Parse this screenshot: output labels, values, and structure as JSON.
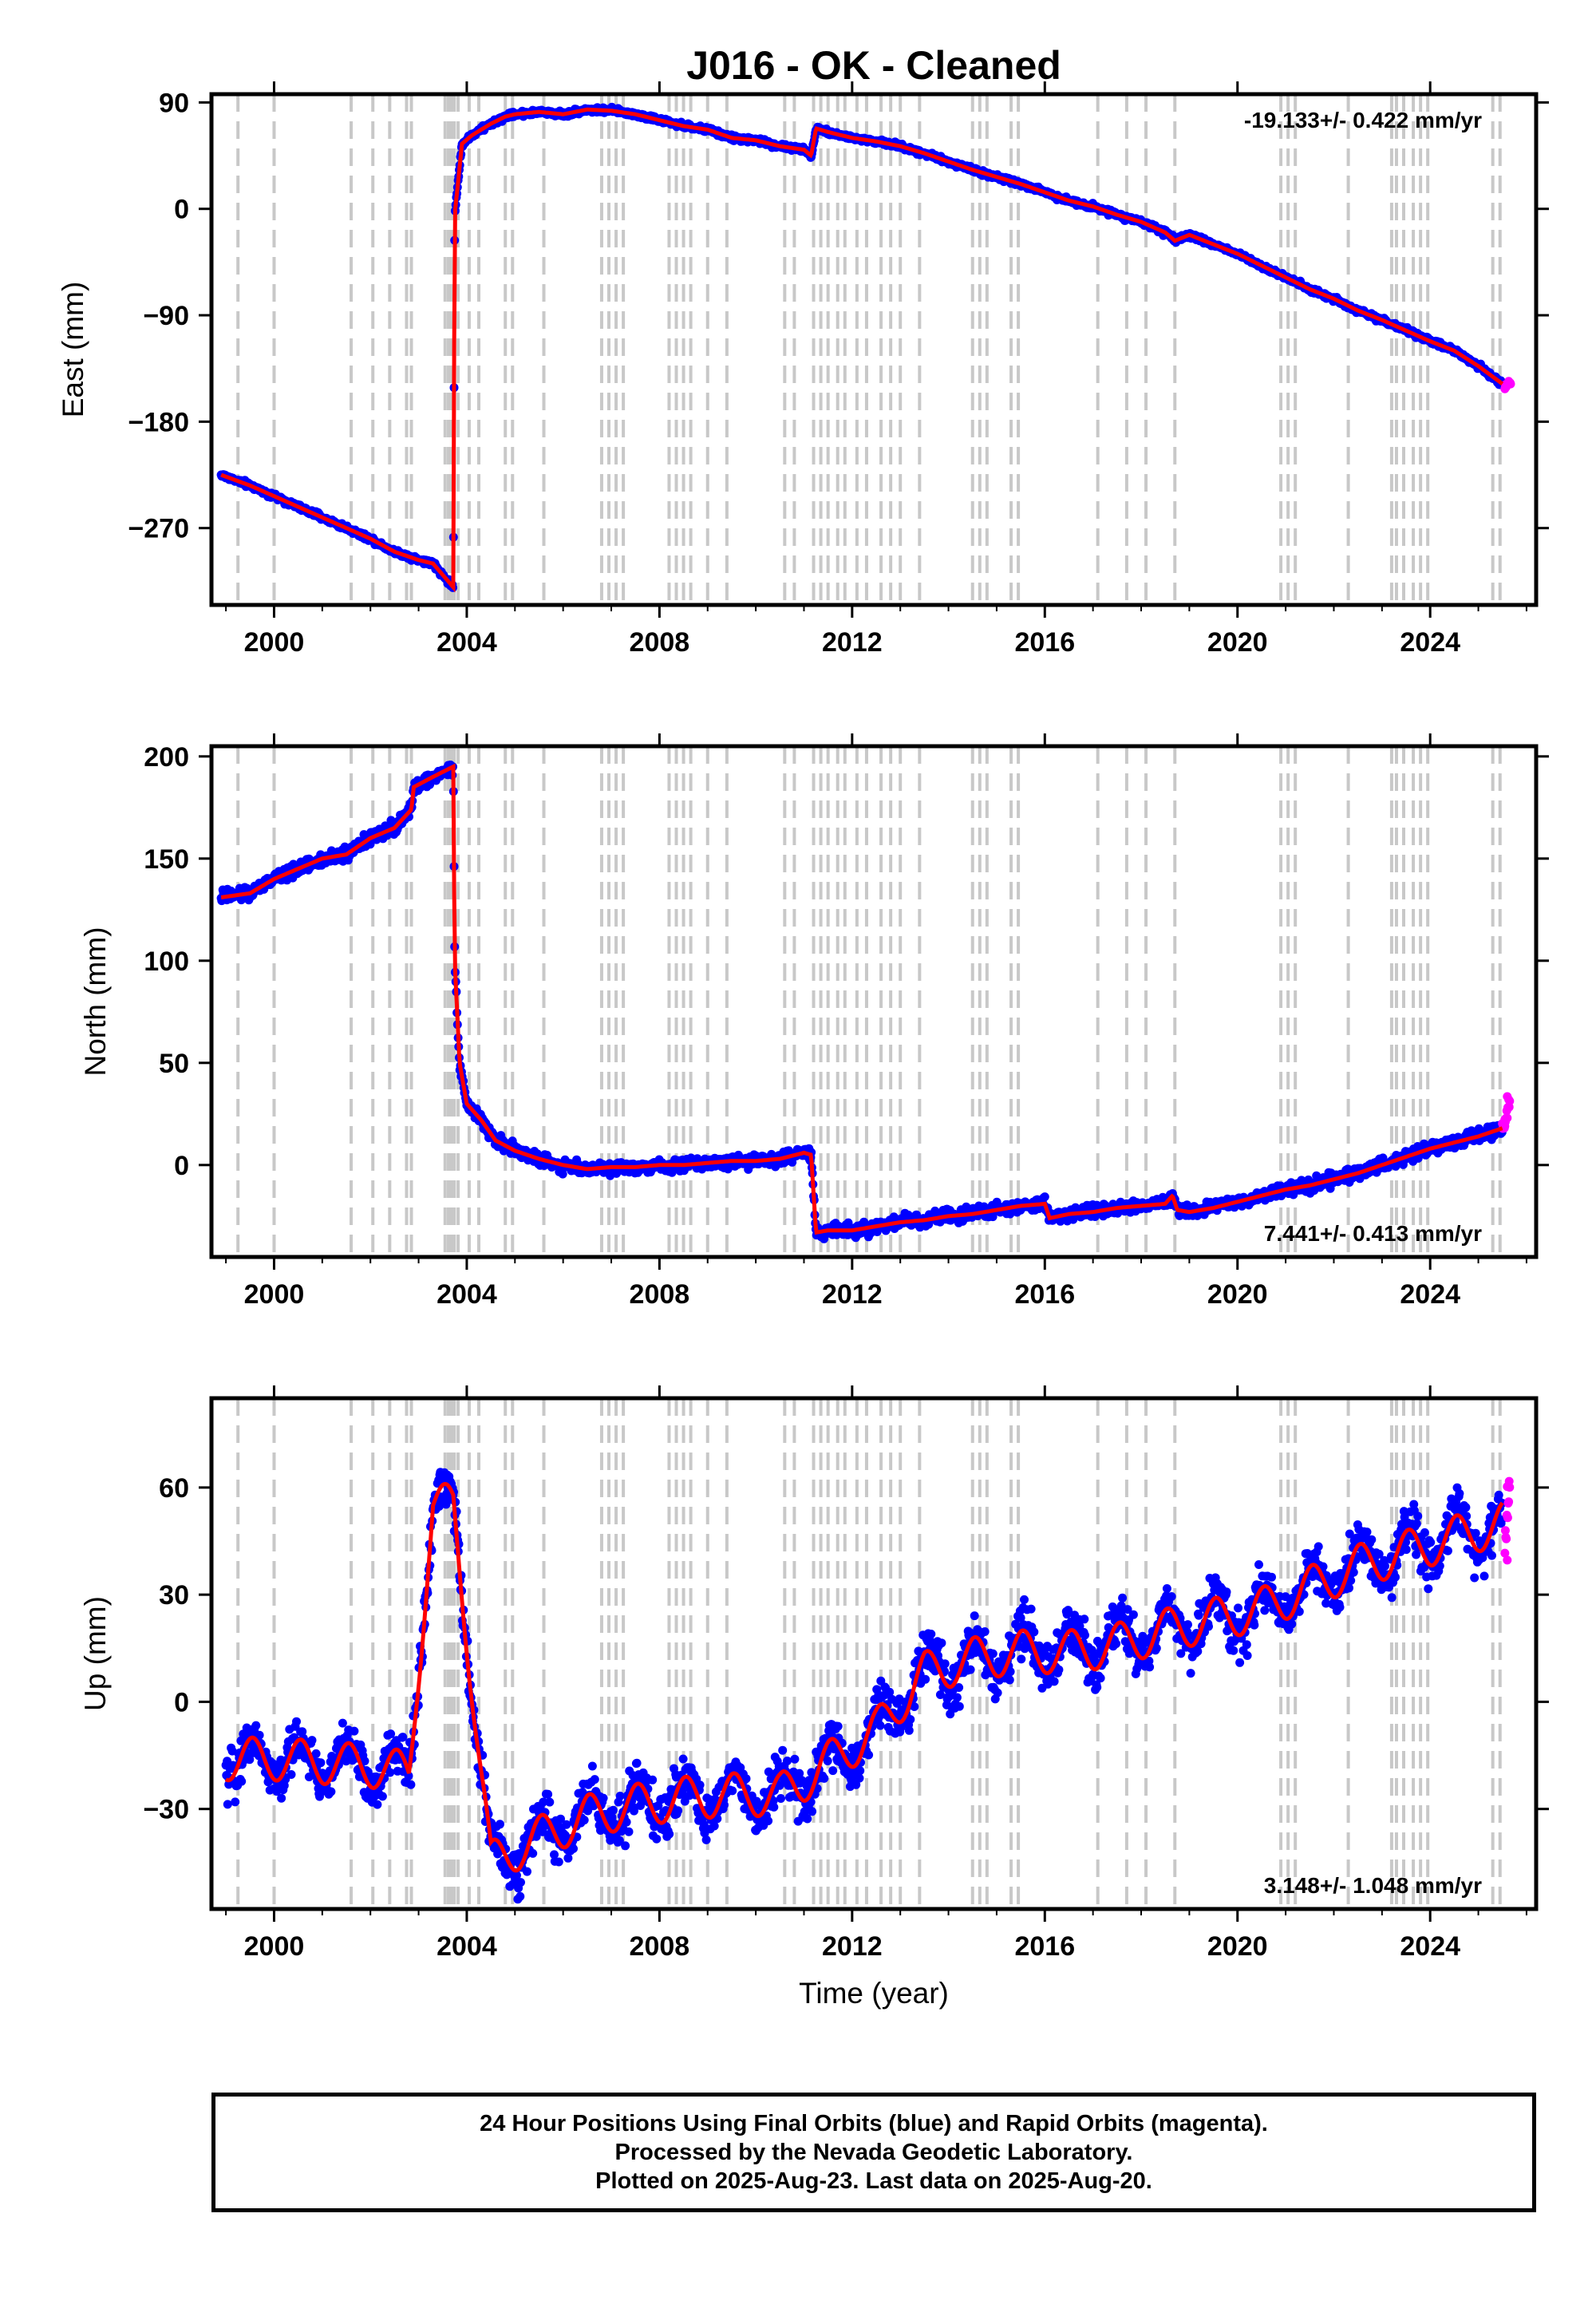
{
  "title": "J016  - OK - Cleaned",
  "x_axis_label": "Time (year)",
  "footer": {
    "line1": "24 Hour Positions Using Final Orbits (blue) and Rapid Orbits (magenta).",
    "line2": "Processed by the Nevada Geodetic Laboratory.",
    "line3": "Plotted on 2025-Aug-23. Last data on 2025-Aug-20."
  },
  "colors": {
    "final_orbits": "#0000ff",
    "rapid_orbits": "#ff00ff",
    "model": "#ff0000",
    "equipment_change_lines": "#c8c8c8"
  },
  "chart_data": [
    {
      "type": "scatter",
      "ylabel": "East (mm)",
      "xlim": [
        1998.7,
        2026.2
      ],
      "ylim": [
        -335,
        97
      ],
      "xticks": [
        2000,
        2004,
        2008,
        2012,
        2016,
        2020,
        2024
      ],
      "yticks": [
        -270,
        -180,
        -90,
        0,
        90
      ],
      "rate_text": "-19.133+/- 0.422 mm/yr",
      "rate_position": "top-right",
      "series": [
        {
          "x": [
            1998.9,
            1999.5,
            2000.0,
            2000.5,
            2001.0,
            2001.5,
            2002.0,
            2002.5,
            2003.0,
            2003.3,
            2003.72,
            2003.75,
            2003.9,
            2004.1,
            2004.5,
            2004.8,
            2005.0,
            2005.5,
            2006.0,
            2006.5,
            2007.0,
            2007.5,
            2008.0,
            2008.5,
            2009.0,
            2009.5,
            2010.0,
            2010.5,
            2011.0,
            2011.15,
            2011.25,
            2011.5,
            2012.0,
            2012.5,
            2013.0,
            2013.5,
            2014.0,
            2014.5,
            2015.0,
            2015.5,
            2016.0,
            2016.5,
            2017.0,
            2017.5,
            2018.0,
            2018.5,
            2018.7,
            2019.0,
            2019.5,
            2020.0,
            2020.5,
            2021.0,
            2021.5,
            2022.0,
            2022.5,
            2023.0,
            2023.5,
            2024.0,
            2024.5,
            2025.0,
            2025.5
          ],
          "y": [
            -225,
            -234,
            -243,
            -252,
            -261,
            -270,
            -279,
            -290,
            -297,
            -300,
            -320,
            -5,
            55,
            62,
            72,
            78,
            80,
            82,
            80,
            84,
            83,
            80,
            75,
            70,
            67,
            60,
            58,
            53,
            50,
            45,
            68,
            65,
            60,
            57,
            53,
            47,
            40,
            33,
            27,
            21,
            14,
            7,
            2,
            -5,
            -11,
            -20,
            -27,
            -22,
            -30,
            -38,
            -48,
            -58,
            -68,
            -76,
            -86,
            -94,
            -103,
            -112,
            -120,
            -133,
            -148
          ]
        },
        {
          "name": "Rapid",
          "x": [
            2025.55,
            2025.62
          ],
          "y": [
            -150,
            -148
          ]
        }
      ]
    },
    {
      "type": "scatter",
      "ylabel": "North (mm)",
      "xlim": [
        1998.7,
        2026.2
      ],
      "ylim": [
        -45,
        205
      ],
      "xticks": [
        2000,
        2004,
        2008,
        2012,
        2016,
        2020,
        2024
      ],
      "yticks": [
        0,
        50,
        100,
        150,
        200
      ],
      "rate_text": "7.441+/- 0.413 mm/yr",
      "rate_position": "bottom-right",
      "series": [
        {
          "x": [
            1998.9,
            1999.5,
            2000.0,
            2000.5,
            2001.0,
            2001.5,
            2002.0,
            2002.5,
            2002.85,
            2002.9,
            2003.3,
            2003.72,
            2003.75,
            2003.85,
            2004.0,
            2004.3,
            2004.6,
            2005.0,
            2005.5,
            2006.0,
            2006.5,
            2007.0,
            2007.5,
            2008.0,
            2008.5,
            2009.0,
            2009.5,
            2010.0,
            2010.5,
            2011.0,
            2011.15,
            2011.25,
            2011.5,
            2012.0,
            2012.5,
            2013.0,
            2013.5,
            2014.0,
            2014.5,
            2015.0,
            2015.5,
            2016.0,
            2016.1,
            2016.5,
            2017.0,
            2017.5,
            2018.0,
            2018.5,
            2018.65,
            2018.75,
            2019.0,
            2019.5,
            2020.0,
            2020.5,
            2021.0,
            2021.5,
            2022.0,
            2022.5,
            2023.0,
            2023.5,
            2024.0,
            2024.5,
            2025.0,
            2025.5
          ],
          "y": [
            131,
            133,
            140,
            145,
            150,
            152,
            160,
            165,
            174,
            185,
            190,
            195,
            100,
            50,
            30,
            22,
            12,
            7,
            3,
            0,
            -2,
            -1,
            -1,
            0,
            0,
            1,
            2,
            2,
            3,
            6,
            5,
            -33,
            -32,
            -32,
            -30,
            -28,
            -27,
            -25,
            -24,
            -22,
            -20,
            -19,
            -26,
            -24,
            -23,
            -21,
            -20,
            -19,
            -15,
            -22,
            -23,
            -21,
            -18,
            -15,
            -12,
            -10,
            -7,
            -4,
            0,
            4,
            8,
            11,
            14,
            18
          ]
        },
        {
          "name": "Rapid",
          "x": [
            2025.5,
            2025.55,
            2025.6
          ],
          "y": [
            18,
            25,
            30
          ]
        }
      ]
    },
    {
      "type": "scatter",
      "ylabel": "Up (mm)",
      "xlim": [
        1998.7,
        2026.2
      ],
      "ylim": [
        -58,
        85
      ],
      "xticks": [
        2000,
        2004,
        2008,
        2012,
        2016,
        2020,
        2024
      ],
      "yticks": [
        -30,
        0,
        30,
        60
      ],
      "rate_text": "3.148+/- 1.048 mm/yr",
      "rate_position": "bottom-right",
      "series": [
        {
          "x": [
            1999.0,
            2000.0,
            2001.0,
            2002.0,
            2002.8,
            2003.3,
            2003.72,
            2004.5,
            2005.5,
            2006.5,
            2007.5,
            2008.5,
            2009.5,
            2010.5,
            2011.0,
            2011.5,
            2012.5,
            2013.5,
            2014.5,
            2015.5,
            2016.5,
            2017.5,
            2018.5,
            2019.5,
            2020.5,
            2021.5,
            2022.5,
            2023.5,
            2024.5,
            2025.5
          ],
          "y": [
            -16,
            -16,
            -17,
            -18,
            -20,
            55,
            55,
            -45,
            -38,
            -32,
            -29,
            -27,
            -26,
            -26,
            -22,
            -17,
            -8,
            8,
            12,
            14,
            14,
            16,
            20,
            23,
            26,
            32,
            38,
            42,
            46,
            50
          ]
        },
        {
          "name": "Rapid",
          "x": [
            2025.55,
            2025.6
          ],
          "y": [
            45,
            55
          ]
        }
      ]
    }
  ],
  "equipment_change_years": [
    1999.25,
    2000.0,
    2001.6,
    2002.05,
    2002.4,
    2002.75,
    2002.85,
    2003.55,
    2003.62,
    2003.68,
    2003.74,
    2003.82,
    2004.05,
    2004.25,
    2004.8,
    2004.95,
    2005.6,
    2006.8,
    2006.95,
    2007.1,
    2007.25,
    2008.2,
    2008.35,
    2008.5,
    2008.65,
    2009.0,
    2009.4,
    2010.6,
    2010.8,
    2011.2,
    2011.35,
    2011.5,
    2011.7,
    2011.85,
    2012.1,
    2012.3,
    2012.6,
    2012.8,
    2013.0,
    2013.4,
    2014.5,
    2014.65,
    2014.8,
    2015.3,
    2015.45,
    2017.1,
    2017.7,
    2018.1,
    2018.7,
    2020.9,
    2021.05,
    2021.2,
    2022.3,
    2023.2,
    2023.3,
    2023.45,
    2023.65,
    2023.8,
    2023.95,
    2025.3,
    2025.45
  ]
}
